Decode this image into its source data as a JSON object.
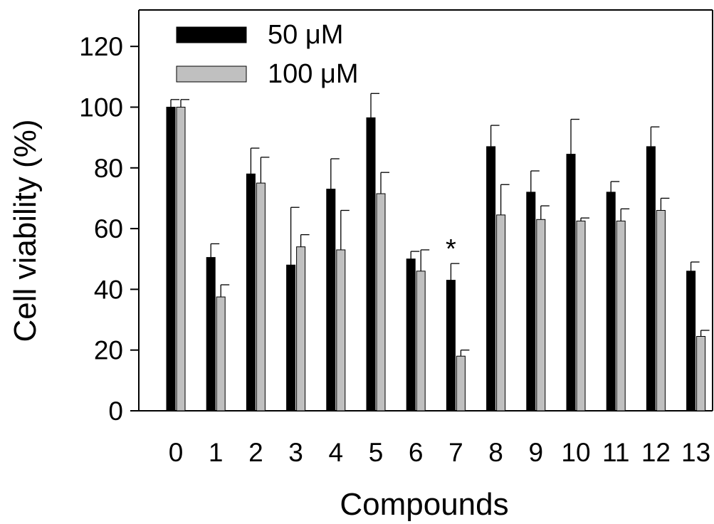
{
  "chart_data": {
    "type": "bar",
    "title": "",
    "xlabel": "Compounds",
    "ylabel": "Cell viability (%)",
    "ylim": [
      0,
      132
    ],
    "yticks": [
      0,
      20,
      40,
      60,
      80,
      100,
      120
    ],
    "categories": [
      "0",
      "1",
      "2",
      "3",
      "4",
      "5",
      "6",
      "7",
      "8",
      "9",
      "10",
      "11",
      "12",
      "13"
    ],
    "series": [
      {
        "name": "50 μM",
        "color": "#000000",
        "values": [
          100,
          50.5,
          78,
          48,
          73,
          96.5,
          50,
          43,
          87,
          72,
          84.5,
          72,
          87,
          46
        ],
        "errors": [
          2.5,
          4.5,
          8.5,
          19,
          10,
          8,
          2.5,
          5.5,
          7,
          7,
          11.5,
          3.5,
          6.5,
          3
        ]
      },
      {
        "name": "100 μM",
        "color": "#c0c0c0",
        "values": [
          100,
          37.5,
          75,
          54,
          53,
          71.5,
          46,
          18,
          64.5,
          63,
          62.5,
          62.5,
          66,
          24.5
        ],
        "errors": [
          2.5,
          4,
          8.5,
          4,
          13,
          7,
          7,
          2,
          10,
          4.5,
          1,
          4,
          4,
          2
        ]
      }
    ],
    "annotations": [
      {
        "text": "*",
        "category": "7"
      }
    ],
    "legend": "top-left",
    "grid": false
  }
}
